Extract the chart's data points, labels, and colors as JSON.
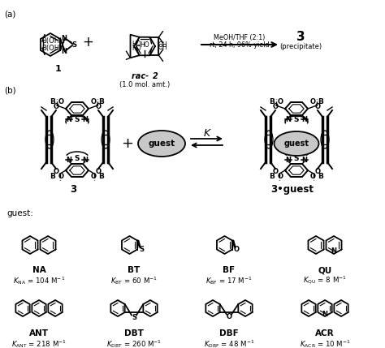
{
  "background": "#ffffff",
  "panel_a_label": "(a)",
  "panel_b_label": "(b)",
  "compound1_label": "1",
  "compound2_label": "rac-2",
  "compound2_note": "(1.0 mol. amt.)",
  "rxn_line1": "MeOH/THF (2:1)",
  "rxn_line2": "rt, 24 h, 96% yield",
  "product_label": "3",
  "product_note": "(precipitate)",
  "eq_label": "K",
  "cage3_label": "3",
  "cage3g_label": "3•guest",
  "guest_intro": "guest:",
  "guests": [
    {
      "abbr": "NA",
      "k_sub": "NA",
      "k_val": "104"
    },
    {
      "abbr": "BT",
      "k_sub": "BT",
      "k_val": "60"
    },
    {
      "abbr": "BF",
      "k_sub": "BF",
      "k_val": "17"
    },
    {
      "abbr": "QU",
      "k_sub": "QU",
      "k_val": "8"
    },
    {
      "abbr": "ANT",
      "k_sub": "ANT",
      "k_val": "218"
    },
    {
      "abbr": "DBT",
      "k_sub": "DBT",
      "k_val": "260"
    },
    {
      "abbr": "DBF",
      "k_sub": "DBF",
      "k_val": "48"
    },
    {
      "abbr": "ACR",
      "k_sub": "ACR",
      "k_val": "10"
    }
  ]
}
